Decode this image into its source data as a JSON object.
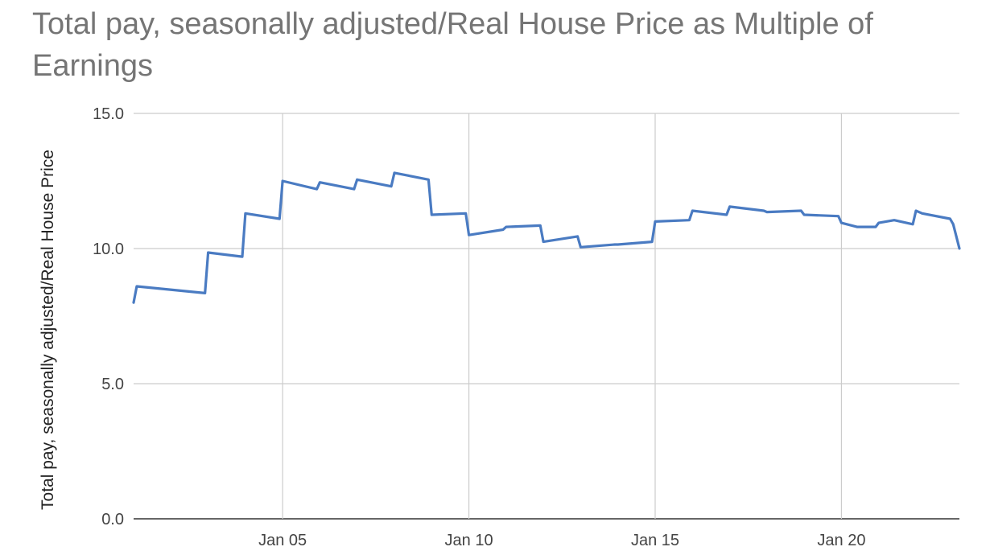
{
  "chart_data": {
    "type": "line",
    "title": "Total pay, seasonally adjusted/Real House Price as Multiple of Earnings",
    "xlabel": "",
    "ylabel": "Total pay, seasonally adjusted/Real House Price",
    "ylim": [
      0,
      15
    ],
    "xlim": [
      "2001-01",
      "2023-03"
    ],
    "yticks": [
      "0.0",
      "5.0",
      "10.0",
      "15.0"
    ],
    "xticks": [
      "Jan 05",
      "Jan 10",
      "Jan 15",
      "Jan 20"
    ],
    "xtick_dates": [
      "2005-01",
      "2010-01",
      "2015-01",
      "2020-01"
    ],
    "grid": true,
    "series": [
      {
        "color": "#4a7bc2",
        "x": [
          "2001-01",
          "2001-02",
          "2002-12",
          "2003-01",
          "2003-12",
          "2004-01",
          "2004-12",
          "2005-01",
          "2005-12",
          "2006-01",
          "2006-12",
          "2007-01",
          "2007-12",
          "2008-01",
          "2008-12",
          "2009-01",
          "2009-12",
          "2010-01",
          "2010-12",
          "2011-01",
          "2011-12",
          "2012-01",
          "2012-12",
          "2013-01",
          "2013-12",
          "2014-01",
          "2014-12",
          "2015-01",
          "2015-12",
          "2016-01",
          "2016-12",
          "2017-01",
          "2017-12",
          "2018-01",
          "2018-12",
          "2019-01",
          "2019-12",
          "2020-01",
          "2020-06",
          "2020-12",
          "2021-01",
          "2021-06",
          "2021-12",
          "2022-01",
          "2022-03",
          "2022-12",
          "2023-01",
          "2023-03"
        ],
        "values": [
          8.0,
          8.6,
          8.35,
          9.85,
          9.7,
          11.3,
          11.1,
          12.5,
          12.2,
          12.45,
          12.2,
          12.55,
          12.3,
          12.8,
          12.55,
          11.25,
          11.3,
          10.5,
          10.7,
          10.8,
          10.85,
          10.25,
          10.45,
          10.05,
          10.15,
          10.15,
          10.25,
          11.0,
          11.05,
          11.4,
          11.25,
          11.55,
          11.4,
          11.35,
          11.4,
          11.25,
          11.2,
          10.95,
          10.8,
          10.8,
          10.95,
          11.05,
          10.9,
          11.4,
          11.3,
          11.1,
          10.9,
          10.0
        ]
      }
    ]
  }
}
